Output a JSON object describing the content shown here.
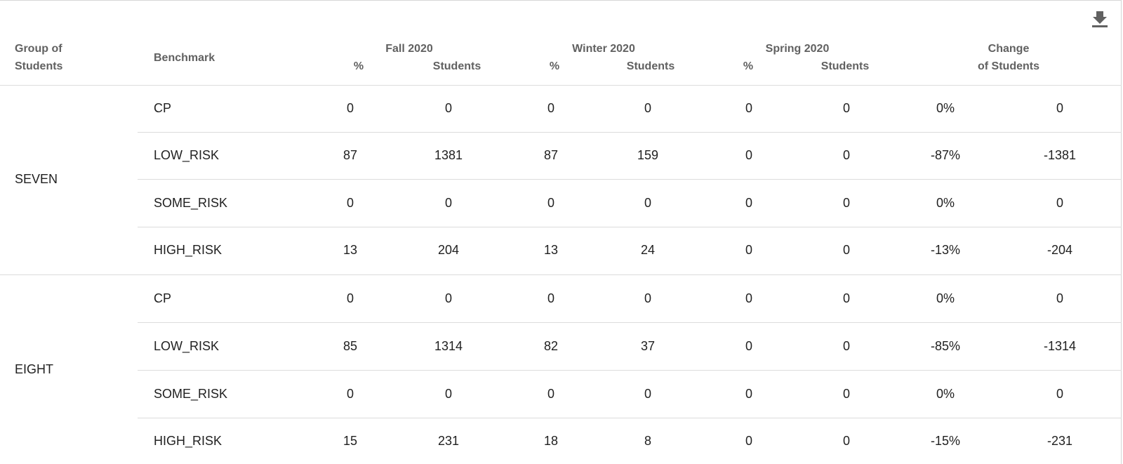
{
  "toolbar": {
    "download_icon": "download-icon"
  },
  "header": {
    "group_col_line1": "Group of",
    "group_col_line2": "Students",
    "benchmark_col": "Benchmark",
    "periods": [
      {
        "label": "Fall 2020",
        "pct_label": "%",
        "students_label": "Students"
      },
      {
        "label": "Winter 2020",
        "pct_label": "%",
        "students_label": "Students"
      },
      {
        "label": "Spring 2020",
        "pct_label": "%",
        "students_label": "Students"
      }
    ],
    "change_line1": "Change",
    "change_line2": "of Students"
  },
  "groups": [
    {
      "name": "SEVEN",
      "rows": [
        {
          "benchmark": "CP",
          "fall_pct": "0",
          "fall_students": "0",
          "winter_pct": "0",
          "winter_students": "0",
          "spring_pct": "0",
          "spring_students": "0",
          "change_pct": "0%",
          "change_students": "0"
        },
        {
          "benchmark": "LOW_RISK",
          "fall_pct": "87",
          "fall_students": "1381",
          "winter_pct": "87",
          "winter_students": "159",
          "spring_pct": "0",
          "spring_students": "0",
          "change_pct": "-87%",
          "change_students": "-1381"
        },
        {
          "benchmark": "SOME_RISK",
          "fall_pct": "0",
          "fall_students": "0",
          "winter_pct": "0",
          "winter_students": "0",
          "spring_pct": "0",
          "spring_students": "0",
          "change_pct": "0%",
          "change_students": "0"
        },
        {
          "benchmark": "HIGH_RISK",
          "fall_pct": "13",
          "fall_students": "204",
          "winter_pct": "13",
          "winter_students": "24",
          "spring_pct": "0",
          "spring_students": "0",
          "change_pct": "-13%",
          "change_students": "-204"
        }
      ]
    },
    {
      "name": "EIGHT",
      "rows": [
        {
          "benchmark": "CP",
          "fall_pct": "0",
          "fall_students": "0",
          "winter_pct": "0",
          "winter_students": "0",
          "spring_pct": "0",
          "spring_students": "0",
          "change_pct": "0%",
          "change_students": "0"
        },
        {
          "benchmark": "LOW_RISK",
          "fall_pct": "85",
          "fall_students": "1314",
          "winter_pct": "82",
          "winter_students": "37",
          "spring_pct": "0",
          "spring_students": "0",
          "change_pct": "-85%",
          "change_students": "-1314"
        },
        {
          "benchmark": "SOME_RISK",
          "fall_pct": "0",
          "fall_students": "0",
          "winter_pct": "0",
          "winter_students": "0",
          "spring_pct": "0",
          "spring_students": "0",
          "change_pct": "0%",
          "change_students": "0"
        },
        {
          "benchmark": "HIGH_RISK",
          "fall_pct": "15",
          "fall_students": "231",
          "winter_pct": "18",
          "winter_students": "8",
          "spring_pct": "0",
          "spring_students": "0",
          "change_pct": "-15%",
          "change_students": "-231"
        }
      ]
    }
  ]
}
